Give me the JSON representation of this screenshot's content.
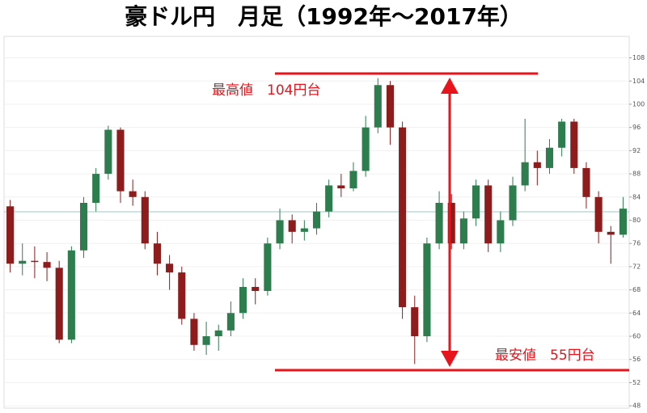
{
  "chart_data": {
    "type": "candlestick",
    "title": "豪ドル円　月足（1992年〜2017年）",
    "annotations": [
      "最高値　104円台",
      "最安値　55円台"
    ],
    "open": [
      82.4,
      72.5,
      73,
      72.8,
      71.8,
      59.4,
      74.8,
      83,
      88,
      95.6,
      85,
      84,
      76,
      72.5,
      71,
      63,
      58.5,
      60,
      61,
      64,
      68.5,
      67.8,
      76,
      80,
      78,
      78.6,
      81.5,
      86,
      85.5,
      88.5,
      96,
      103.3,
      96,
      65,
      60,
      76,
      83,
      76,
      80.3,
      86,
      76,
      80,
      86,
      90,
      89,
      92.5,
      97,
      89,
      84,
      78,
      77.5
    ],
    "high": [
      83.5,
      76,
      75.5,
      74.5,
      73,
      75.5,
      84,
      89,
      96.3,
      96,
      87,
      85,
      78,
      74,
      72,
      64,
      62.5,
      62,
      66,
      70,
      70,
      77,
      82,
      81,
      80,
      83,
      87,
      88,
      90,
      98,
      104.5,
      104,
      97,
      67,
      77,
      85,
      84.5,
      81.5,
      87,
      87,
      81.5,
      87.5,
      97.5,
      92,
      94,
      97.5,
      97.5,
      90,
      85,
      79,
      84
    ],
    "low": [
      71,
      70.5,
      70,
      69.5,
      58.8,
      58.8,
      73.5,
      81.5,
      87,
      83,
      82.5,
      75,
      70.5,
      68,
      62,
      57.5,
      56.8,
      57.5,
      60,
      63,
      65.5,
      67,
      75,
      76,
      76.5,
      77.5,
      80.5,
      84,
      85,
      87.5,
      95,
      93,
      63,
      55.2,
      59,
      75,
      75,
      75,
      79,
      74.5,
      74.5,
      79,
      85,
      86,
      88,
      91,
      88,
      82,
      76,
      72.5,
      77
    ],
    "close": [
      72.5,
      73,
      72.8,
      71.8,
      59.4,
      74.8,
      83,
      88,
      95.6,
      85,
      84,
      76,
      72.5,
      71,
      63,
      58.5,
      60,
      61,
      64,
      68.5,
      67.8,
      76,
      80,
      78,
      78.6,
      81.5,
      86,
      85.5,
      88.5,
      96,
      103.3,
      96,
      65,
      60,
      76,
      83,
      76,
      80.3,
      86,
      76,
      80,
      86,
      90,
      89,
      92.5,
      97,
      89,
      84,
      78,
      77.5,
      82
    ],
    "up_color": "#2e7d4f",
    "down_color": "#8e1c1c",
    "ylim": [
      47.6,
      111.7
    ],
    "yticks": [
      48,
      52,
      56,
      60,
      64,
      68,
      72,
      76,
      80,
      84,
      88,
      92,
      96,
      100,
      104,
      108
    ],
    "grid": true
  }
}
